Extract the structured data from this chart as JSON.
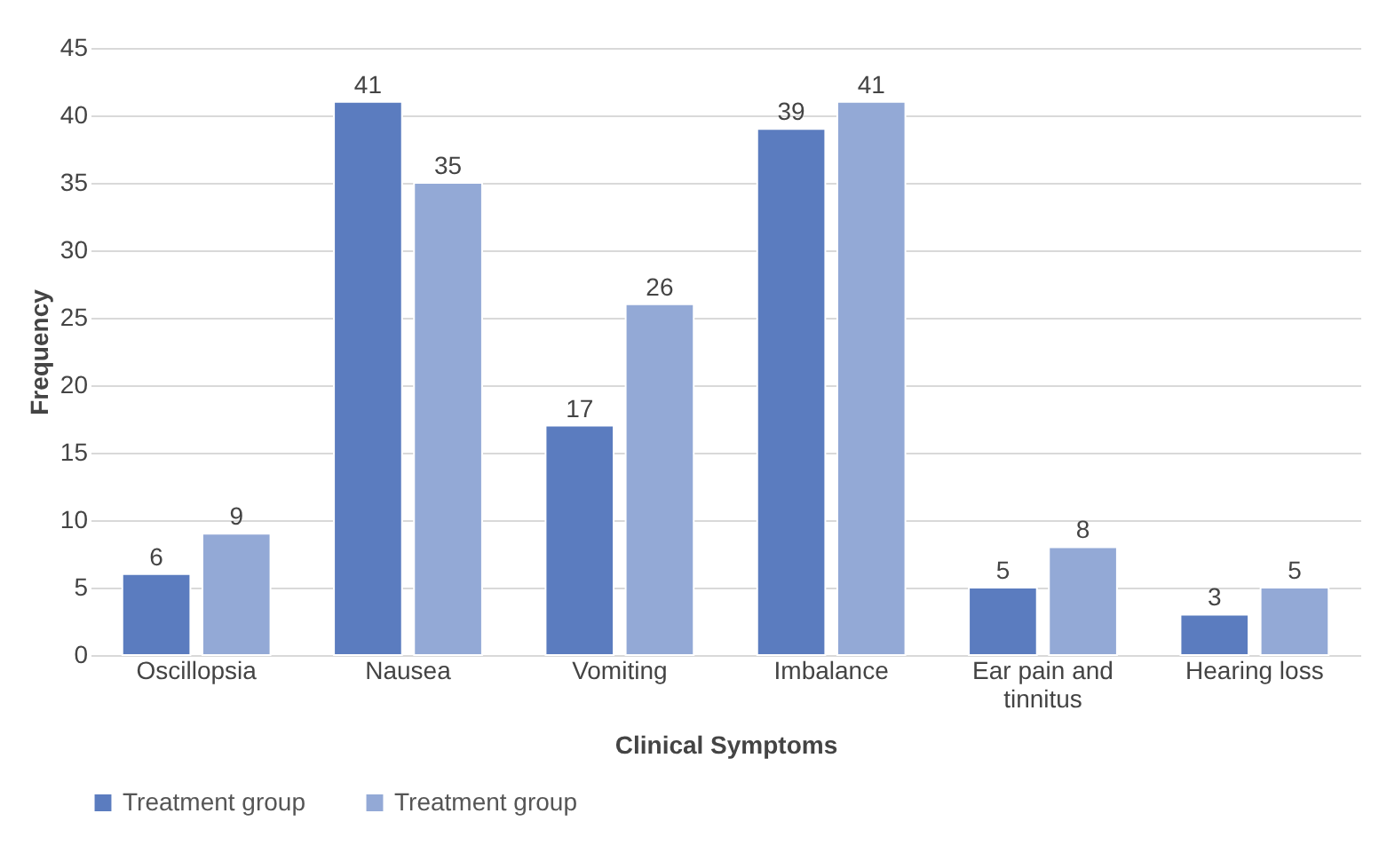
{
  "chart_data": {
    "type": "bar",
    "xlabel": "Clinical Symptoms",
    "ylabel": "Frequency",
    "categories": [
      "Oscillopsia",
      "Nausea",
      "Vomiting",
      "Imbalance",
      "Ear pain and tinnitus",
      "Hearing loss"
    ],
    "series": [
      {
        "name": "Treatment group",
        "color": "#5b7cbf",
        "values": [
          6,
          41,
          17,
          39,
          5,
          3
        ]
      },
      {
        "name": "Treatment group",
        "color": "#93a9d6",
        "values": [
          9,
          35,
          26,
          41,
          8,
          5
        ]
      }
    ],
    "ylim": [
      0,
      45
    ],
    "yticks": [
      0,
      5,
      10,
      15,
      20,
      25,
      30,
      35,
      40,
      45
    ],
    "grid": "y",
    "legend": "bottom",
    "data_labels": true
  }
}
